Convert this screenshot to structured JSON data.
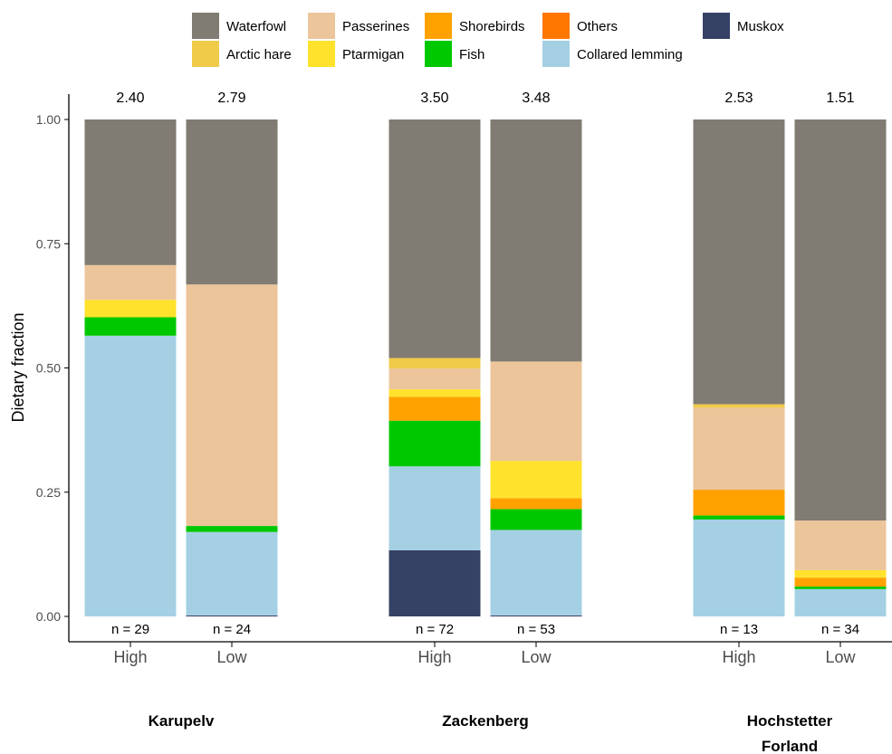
{
  "chart_data": {
    "type": "bar",
    "stacked": true,
    "ylabel": "Dietary fraction",
    "ylim": [
      0,
      1
    ],
    "yticks": [
      "0.00",
      "0.25",
      "0.50",
      "0.75",
      "1.00"
    ],
    "legend_position": "top",
    "legend": [
      {
        "name": "Waterfowl",
        "color": "#807b73"
      },
      {
        "name": "Passerines",
        "color": "#ecc59b"
      },
      {
        "name": "Shorebirds",
        "color": "#ffa200"
      },
      {
        "name": "Others",
        "color": "#ff7700"
      },
      {
        "name": "Muskox",
        "color": "#354165"
      },
      {
        "name": "Arctic hare",
        "color": "#f0cb4a"
      },
      {
        "name": "Ptarmigan",
        "color": "#ffe22c"
      },
      {
        "name": "Fish",
        "color": "#00c800"
      },
      {
        "name": "Collared lemming",
        "color": "#a5d0e4"
      }
    ],
    "stack_order": [
      "Muskox",
      "Collared lemming",
      "Fish",
      "Others",
      "Shorebirds",
      "Ptarmigan",
      "Passerines",
      "Arctic hare",
      "Waterfowl"
    ],
    "groups": [
      {
        "name": "Karupelv",
        "bars": [
          {
            "category": "High",
            "top_label": "2.40",
            "n_label": "n = 29",
            "values": {
              "Muskox": 0.0,
              "Collared lemming": 0.565,
              "Fish": 0.037,
              "Others": 0.0,
              "Shorebirds": 0.0,
              "Ptarmigan": 0.035,
              "Passerines": 0.07,
              "Arctic hare": 0.0,
              "Waterfowl": 0.293
            }
          },
          {
            "category": "Low",
            "top_label": "2.79",
            "n_label": "n = 24",
            "values": {
              "Muskox": 0.002,
              "Collared lemming": 0.168,
              "Fish": 0.012,
              "Others": 0.0,
              "Shorebirds": 0.0,
              "Ptarmigan": 0.0,
              "Passerines": 0.486,
              "Arctic hare": 0.0,
              "Waterfowl": 0.332
            }
          }
        ]
      },
      {
        "name": "Zackenberg",
        "bars": [
          {
            "category": "High",
            "top_label": "3.50",
            "n_label": "n = 72",
            "values": {
              "Muskox": 0.133,
              "Collared lemming": 0.169,
              "Fish": 0.092,
              "Others": 0.0,
              "Shorebirds": 0.048,
              "Ptarmigan": 0.015,
              "Passerines": 0.042,
              "Arctic hare": 0.021,
              "Waterfowl": 0.48
            }
          },
          {
            "category": "Low",
            "top_label": "3.48",
            "n_label": "n = 53",
            "values": {
              "Muskox": 0.002,
              "Collared lemming": 0.172,
              "Fish": 0.042,
              "Others": 0.0,
              "Shorebirds": 0.022,
              "Ptarmigan": 0.075,
              "Passerines": 0.2,
              "Arctic hare": 0.0,
              "Waterfowl": 0.487
            }
          }
        ]
      },
      {
        "name": "Hochstetter Forland",
        "bars": [
          {
            "category": "High",
            "top_label": "2.53",
            "n_label": "n = 13",
            "values": {
              "Muskox": 0.0,
              "Collared lemming": 0.195,
              "Fish": 0.008,
              "Others": 0.0,
              "Shorebirds": 0.052,
              "Ptarmigan": 0.0,
              "Passerines": 0.165,
              "Arctic hare": 0.007,
              "Waterfowl": 0.573
            }
          },
          {
            "category": "Low",
            "top_label": "1.51",
            "n_label": "n = 34",
            "values": {
              "Muskox": 0.0,
              "Collared lemming": 0.055,
              "Fish": 0.005,
              "Others": 0.0,
              "Shorebirds": 0.018,
              "Ptarmigan": 0.015,
              "Passerines": 0.1,
              "Arctic hare": 0.0,
              "Waterfowl": 0.807
            }
          }
        ]
      }
    ]
  }
}
